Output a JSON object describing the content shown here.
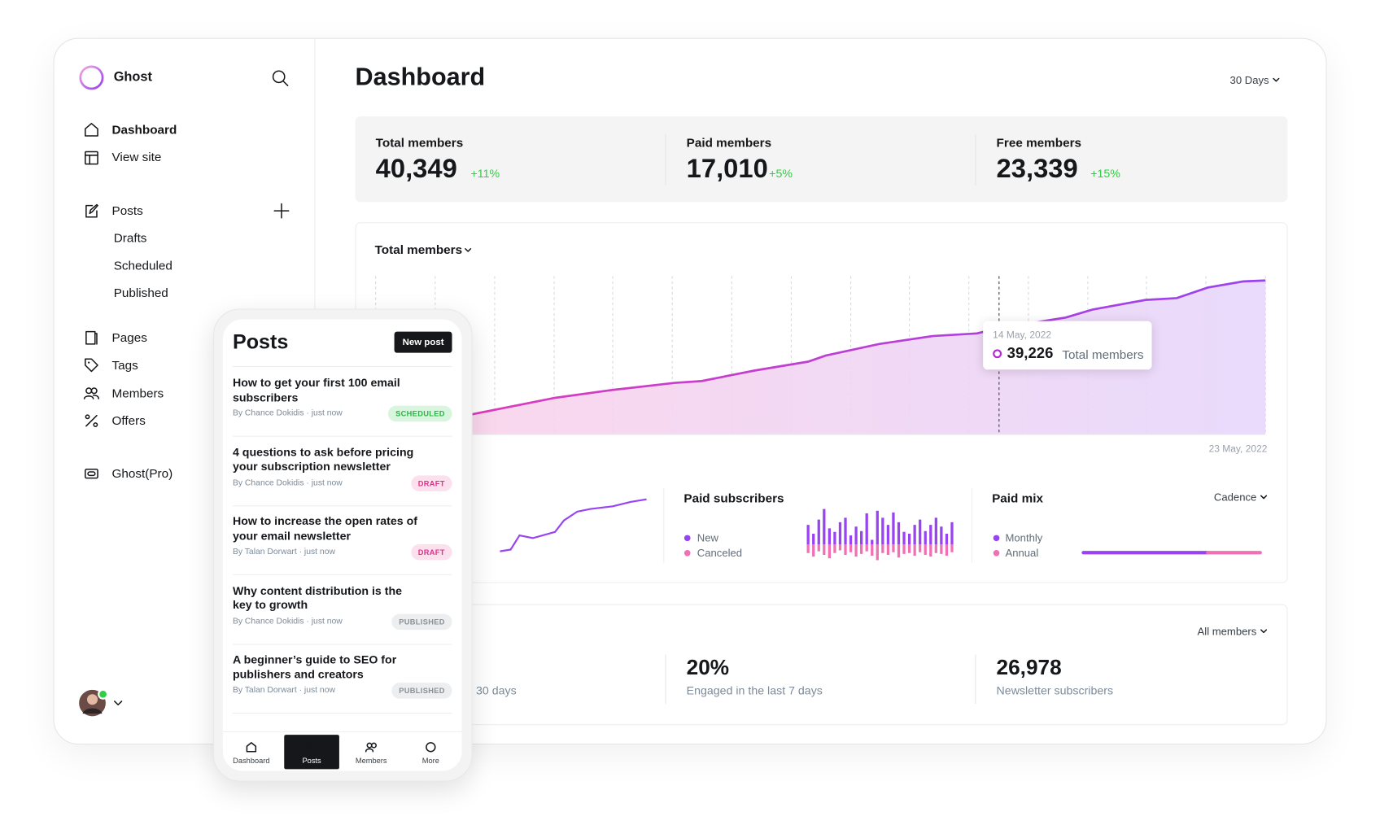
{
  "sidebar": {
    "brand": "Ghost",
    "nav": [
      "Dashboard",
      "View site"
    ],
    "posts": "Posts",
    "post_sub": [
      "Drafts",
      "Scheduled",
      "Published"
    ],
    "nav2": [
      "Pages",
      "Tags",
      "Members",
      "Offers"
    ],
    "pro": "Ghost(Pro)"
  },
  "header": {
    "title": "Dashboard",
    "range": "30 Days"
  },
  "stats": [
    {
      "label": "Total members",
      "value": "40,349",
      "change": "+11%"
    },
    {
      "label": "Paid members",
      "value": "17,010",
      "change": "+5%"
    },
    {
      "label": "Free members",
      "value": "23,339",
      "change": "+15%"
    }
  ],
  "growth_chart": {
    "title": "Total members",
    "tooltip": {
      "date": "14 May, 2022",
      "value": "39,226",
      "label": "Total members"
    },
    "end_date": "23 May, 2022"
  },
  "paid_subscribers": {
    "title": "Paid subscribers",
    "legend": [
      "New",
      "Canceled"
    ]
  },
  "paid_mix": {
    "title": "Paid mix",
    "filter": "Cadence",
    "legend": [
      "Monthly",
      "Annual"
    ]
  },
  "engagement": {
    "filter": "All members",
    "items": [
      {
        "label": "30 days"
      },
      {
        "value": "20%",
        "label": "Engaged in the last 7 days"
      },
      {
        "value": "26,978",
        "label": "Newsletter subscribers"
      }
    ]
  },
  "mobile": {
    "title": "Posts",
    "new_post": "New post",
    "posts": [
      {
        "title": "How to get your first 100 email subscribers",
        "meta": "By Chance Dokidis · just now",
        "status": "SCHEDULED"
      },
      {
        "title": "4 questions to ask before pricing your subscription newsletter",
        "meta": "By Chance Dokidis · just now",
        "status": "DRAFT"
      },
      {
        "title": "How to increase the open rates of your email newsletter",
        "meta": "By Talan Dorwart · just now",
        "status": "DRAFT"
      },
      {
        "title": "Why content distribution is the key to growth",
        "meta": "By Chance Dokidis · just now",
        "status": "PUBLISHED"
      },
      {
        "title": "A beginner’s guide to SEO for publishers and creators",
        "meta": "By Talan Dorwart · just now",
        "status": "PUBLISHED"
      }
    ],
    "tabs": [
      "Dashboard",
      "Posts",
      "Members",
      "More"
    ]
  }
}
